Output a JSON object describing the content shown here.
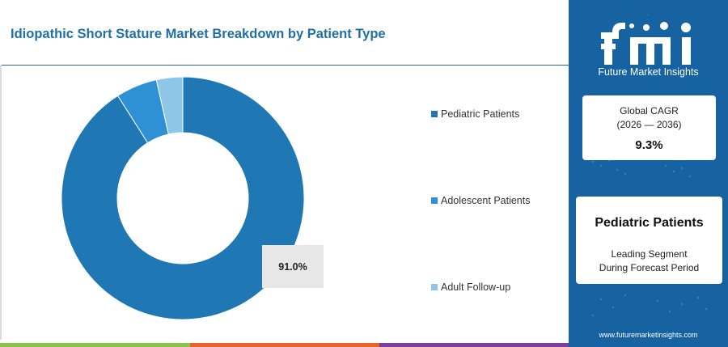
{
  "chart_data": {
    "type": "pie",
    "title": "Idiopathic Short Stature Market Breakdown by Patient Type",
    "categories": [
      "Pediatric Patients",
      "Adolescent Patients",
      "Adult Follow-up"
    ],
    "values": [
      91.0,
      5.5,
      3.5
    ],
    "colors": [
      "#1f77b4",
      "#2e91d5",
      "#8ec6e8"
    ],
    "donut": true,
    "data_labels": [
      "91.0%"
    ],
    "legend_position": "right"
  },
  "bottom_bar_colors": [
    "#8bc34a",
    "#e8632b",
    "#7b3f9e"
  ],
  "sidebar": {
    "brand": "fmi",
    "brand_sub": "Future Market Insights",
    "cagr_label": "Global CAGR",
    "cagr_period": "(2026 — 2036)",
    "cagr_value": "9.3%",
    "segment_name": "Pediatric Patients",
    "segment_desc_line1": "Leading Segment",
    "segment_desc_line2": "During Forecast Period",
    "website": "www.futuremarketinsights.com"
  }
}
